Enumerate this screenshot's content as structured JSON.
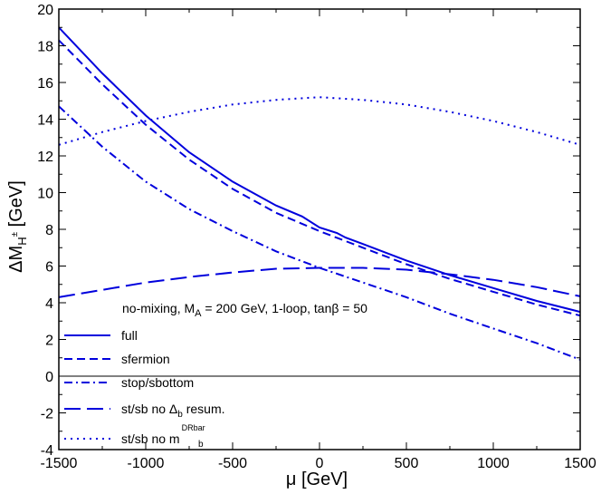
{
  "chart_data": {
    "type": "line",
    "xlabel": "μ [GeV]",
    "ylabel": {
      "main": "ΔM",
      "sub": "H",
      "sup": "±",
      "unit": " [GeV]"
    },
    "xlim": [
      -1500,
      1500
    ],
    "ylim": [
      -4,
      20
    ],
    "xticks": [
      -1500,
      -1000,
      -500,
      0,
      500,
      1000,
      1500
    ],
    "yticks": [
      -4,
      -2,
      0,
      2,
      4,
      6,
      8,
      10,
      12,
      14,
      16,
      18,
      20
    ],
    "grid": false,
    "zero_line": true,
    "line_color": "#0000dd",
    "annotation": "no-mixing, M_A = 200 GeV, 1-loop, tanβ = 50",
    "annotation_parts": {
      "pre": "no-mixing, M",
      "sub": "A",
      "post": " = 200 GeV, 1-loop, tanβ = 50"
    },
    "legend_position": "lower-left",
    "series": [
      {
        "name": "full",
        "label": {
          "pre": "full"
        },
        "dash": "solid",
        "x": [
          -1500,
          -1250,
          -1000,
          -750,
          -500,
          -250,
          -100,
          0,
          100,
          150,
          250,
          500,
          750,
          1000,
          1250,
          1500
        ],
        "y": [
          19.0,
          16.5,
          14.2,
          12.2,
          10.6,
          9.3,
          8.7,
          8.1,
          7.8,
          7.55,
          7.2,
          6.3,
          5.5,
          4.8,
          4.1,
          3.5
        ]
      },
      {
        "name": "sfermion",
        "label": {
          "pre": "sfermion"
        },
        "dash": "dash",
        "x": [
          -1500,
          -1250,
          -1000,
          -750,
          -500,
          -250,
          0,
          250,
          500,
          750,
          1000,
          1250,
          1500
        ],
        "y": [
          18.3,
          15.9,
          13.7,
          11.8,
          10.2,
          8.9,
          7.9,
          7.0,
          6.1,
          5.3,
          4.6,
          3.9,
          3.3
        ]
      },
      {
        "name": "stop/sbottom",
        "label": {
          "pre": "stop/sbottom"
        },
        "dash": "dashdot",
        "x": [
          -1500,
          -1250,
          -1000,
          -750,
          -500,
          -250,
          0,
          250,
          500,
          750,
          1000,
          1250,
          1500
        ],
        "y": [
          14.7,
          12.5,
          10.6,
          9.1,
          7.9,
          6.8,
          5.9,
          5.1,
          4.3,
          3.4,
          2.6,
          1.8,
          0.9
        ]
      },
      {
        "name": "st/sb no Δb resum.",
        "label": {
          "pre": "st/sb no Δ",
          "sub": "b",
          "post": " resum."
        },
        "dash": "longdash",
        "x": [
          -1500,
          -1250,
          -1000,
          -750,
          -500,
          -250,
          0,
          250,
          500,
          750,
          1000,
          1250,
          1500
        ],
        "y": [
          4.3,
          4.7,
          5.1,
          5.4,
          5.65,
          5.85,
          5.9,
          5.9,
          5.8,
          5.55,
          5.25,
          4.85,
          4.35
        ]
      },
      {
        "name": "st/sb no mb DRbar",
        "label": {
          "pre": "st/sb no m",
          "sub": "b",
          "sup": "DRbar"
        },
        "dash": "dot",
        "x": [
          -1500,
          -1250,
          -1000,
          -750,
          -500,
          -250,
          0,
          250,
          500,
          750,
          1000,
          1250,
          1500
        ],
        "y": [
          12.6,
          13.3,
          13.9,
          14.4,
          14.8,
          15.05,
          15.2,
          15.05,
          14.8,
          14.4,
          13.9,
          13.3,
          12.6
        ]
      }
    ]
  }
}
